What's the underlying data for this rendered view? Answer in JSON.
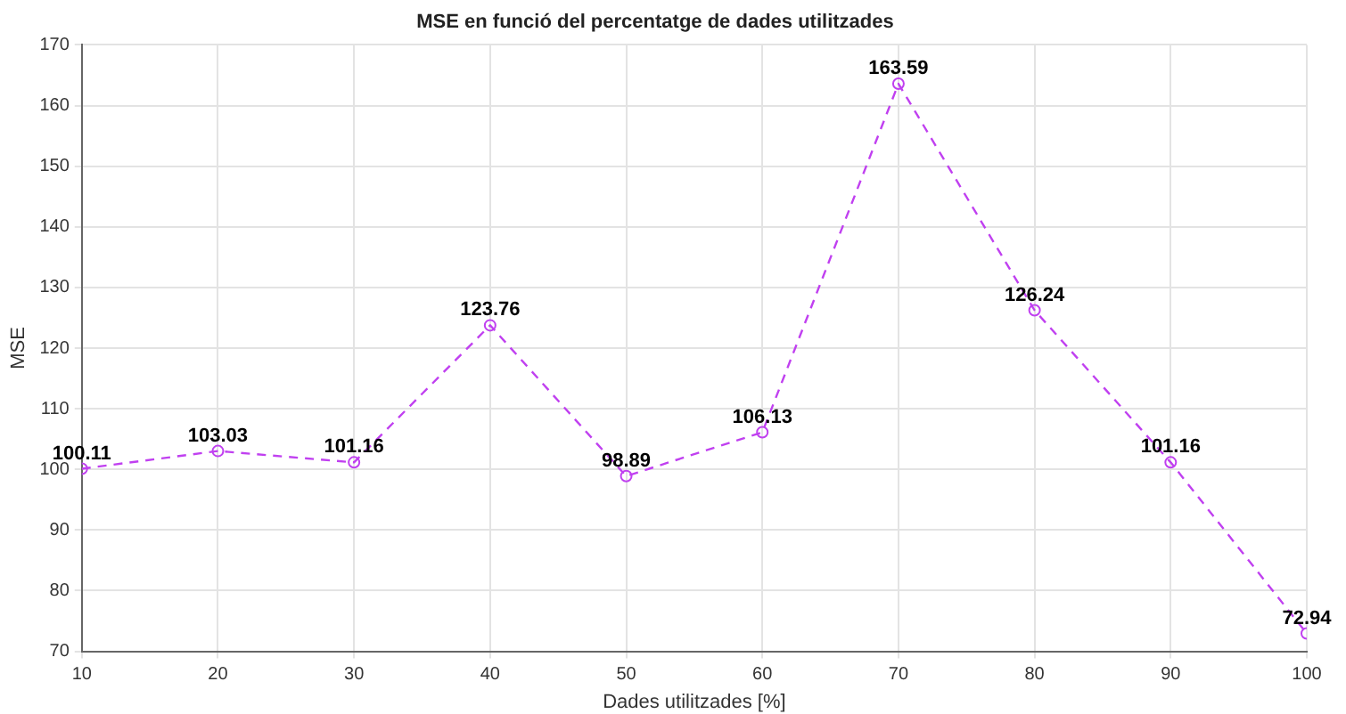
{
  "chart_data": {
    "type": "line",
    "title": "MSE en funció del percentatge de dades utilitzades",
    "xlabel": "Dades utilitzades [%]",
    "ylabel": "MSE",
    "x": [
      10,
      20,
      30,
      40,
      50,
      60,
      70,
      80,
      90,
      100
    ],
    "series": [
      {
        "color": "#c040f0",
        "values": [
          100.11,
          103.03,
          101.16,
          123.76,
          98.89,
          106.13,
          163.59,
          126.24,
          101.16,
          72.94
        ]
      }
    ],
    "xlim": [
      10,
      100
    ],
    "xticks": [
      10,
      20,
      30,
      40,
      50,
      60,
      70,
      80,
      90,
      100
    ],
    "ylim": [
      70,
      170
    ],
    "yticks": [
      70,
      80,
      90,
      100,
      110,
      120,
      130,
      140,
      150,
      160,
      170
    ],
    "grid": true,
    "legend": false,
    "marker": "circle",
    "line_style": "dashed",
    "data_labels": true
  }
}
